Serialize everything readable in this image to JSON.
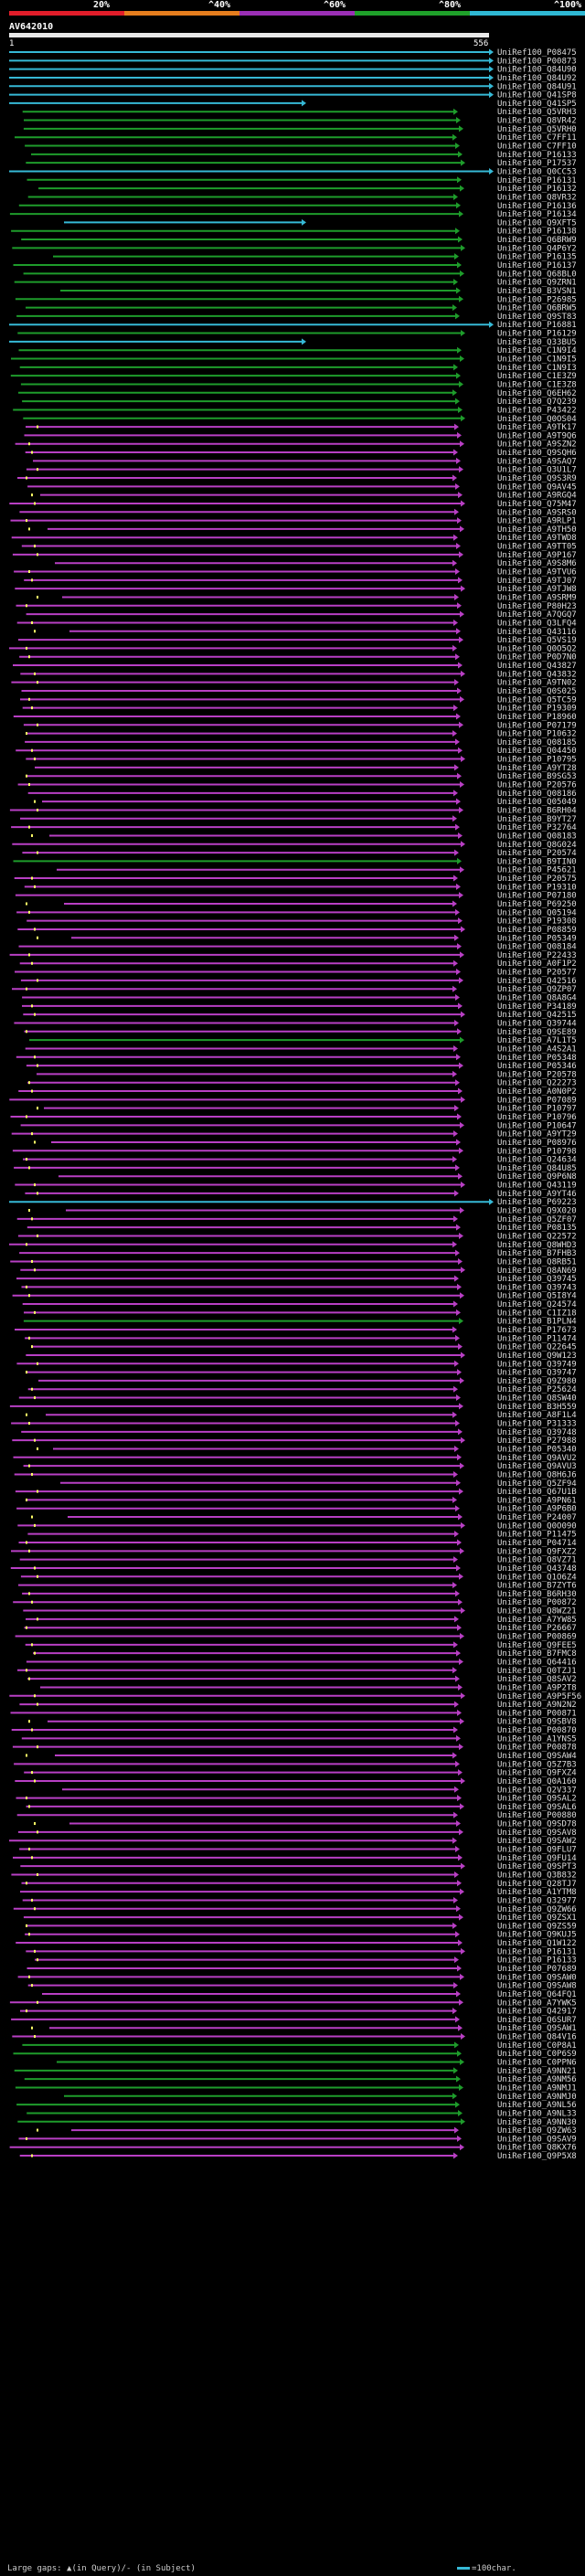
{
  "chart_data": {
    "type": "alignment-graph",
    "query": {
      "name": "AV642010",
      "start": 1,
      "end": 556
    },
    "scale": [
      {
        "label": "20%",
        "color": "#e11d2a"
      },
      {
        "label": "^40%",
        "color": "#e67e1e"
      },
      {
        "label": "^60%",
        "color": "#9b2fb5"
      },
      {
        "label": "^80%",
        "color": "#1fa12a"
      },
      {
        "label": "^100%",
        "color": "#2fb8d4"
      }
    ],
    "class_colors": {
      "c": "#36b9d6",
      "g": "#1e9c2b",
      "m": "#b83fc4"
    },
    "hits_compact": "P08475:c,P00873:c,Q84U90:c,Q84U92:c,Q84U91:c,Q41SP8:c,Q41SP5:c,Q5VRH3:g,Q8VR42:g,Q5VRH0:g,C7FF11:g,C7FF10:g,P16133:g,P17537:g,Q0CC53:c,P16131:g,P16132:g,Q8VR32:g,P16136:g,P16134:g,Q9XFT5:c,P16138:g,Q6BRW9:g,Q4P6Y2:g,P16135:g,P16137:g,Q68BL0:g,Q9ZRN1:g,B3VSN1:g,P26985:g,Q6BRW5:g,Q9ST83:g,P16881:c,P16129:g,Q33BU5:c,C1N9I4:g,C1N9I5:g,C1N9I3:g,C1E3Z9:g,C1E3Z8:g,Q6EH62:g,Q7Q239:g,P43422:g,Q0OS04:g,A9TK17:m,A9T9Q6:m,A9SZN2:m,Q9SQH6:m,A9SAQ7:m,Q3U1L7:m,Q9S3R9:m,Q9AV45:m,A9RGQ4:m,Q75M47:m,A9SRS0:m,A9RLP1:m,A9TH50:m,A9TWD8:m,A9TT05:m,A9P167:m,A9S8M6:m,A9TVU6:m,A9TJ07:m,A9TJW8:m,A9SRM9:m,P80H23:m,A7QGQ7:m,Q3LFQ4:m,Q43116:m,Q5VS19:m,Q0O5Q2:m,P0D7N0:m,Q43827:m,Q43832:m,A9TN02:m,Q0S025:m,Q5TC59:m,P19309:m,P18960:m,P07179:m,P10632:m,Q08185:m,Q04450:m,P10795:m,A9YT28:m,B9SG53:m,P20576:m,Q08186:m,Q05049:m,B6RH04:m,B9YT27:m,P32764:m,Q08183:m,Q8G024:m,P20574:m,B9TIN0:g,P45621:m,P20575:m,P19310:m,P07180:m,P69250:m,Q05194:m,P19308:m,P08859:m,P05349:m,Q08184:m,P22433:m,A0F1P2:m,P20577:m,Q42516:m,Q9ZP07:m,Q8A8G4:m,P34189:m,Q42515:m,Q39744:m,Q9SE89:m,A7L1T5:g,A4S2A1:m,P05348:m,P05346:m,P20578:m,Q22273:m,A0N0P2:m,P07089:m,P10797:m,P10796:m,P10647:m,A9YT29:m,P08976:m,P10798:m,Q24634:m,Q84U85:m,Q9P6N8:m,Q43119:m,A9YT46:m,P69223:c,Q9X020:m,Q5ZF07:m,P08135:m,Q22572:m,Q8WHD3:m,B7FHB3:m,Q8RB51:m,Q8AN69:m,Q39745:m,Q39743:m,Q5I8Y4:m,Q24574:m,C1IZ18:m,B1PLN4:g,P17673:m,P11474:m,Q22645:m,Q9W123:m,Q39749:m,Q39747:m,Q9Z980:m,P25624:m,Q8SW40:m,B3H559:m,A8F1L4:m,P31333:m,Q39748:m,P27988:m,P05340:m,Q9AVU2:m,Q9AVU3:m,Q8H6J6:m,Q5ZF94:m,Q67U1B:m,A9PN61:m,A9P6B0:m,P24007:m,Q0O090:m,P11475:m,P04714:m,Q9FXZ2:m,Q8VZ71:m,Q43748:m,Q1O6Z4:m,B7ZYT6:m,B6RH30:m,P00872:m,Q8WZ21:m,A7YW85:m,P26667:m,P00869:m,Q9FEE5:m,B7FMC8:m,Q64416:m,Q0TZJ1:m,Q8SAV2:m,A9P2T8:m,A9P5F56:m,A9N2N2:m,P00871:m,Q9SBV8:m,P00870:m,A1YNS5:m,P00878:m,Q9SAW4:m,Q5Z7B3:m,Q9FXZ4:m,Q0A160:m,Q2V337:m,Q9SAL2:m,Q9SAL6:m,P00880:m,Q9SD78:m,Q9SAV8:m,Q9SAW2:m,Q9FLU7:m,Q9FU14:m,Q9SPT3:m,Q3B832:m,Q28TJ7:m,A1YTM8:m,Q32977:m,Q9ZW66:m,Q9ZSX1:m,Q9ZS59:m,Q9KUJ5:m,Q1W122:m,P16131:m,P16133:m,P07689:m,Q9SAW0:m,Q9SAW8:m,Q64FQ1:m,A7YWK5:m,Q42917:m,Q6SUR7:m,Q9SAW1:m,Q84V16:m,C0P8A1:g,C0P6S9:g,C0PPN6:g,A9NN21:g,A9NM56:g,A9NMJ1:g,A9NMJ0:g,A9NL56:g,A9NL33:g,A9NN30:g,Q9ZW63:m,Q9SAV9:m,Q8KX76:m,Q9P5X8:m"
  },
  "footer": {
    "large_gaps": "Large gaps: ▲(in Query)/- (in Subject)",
    "scale_note": "=100char."
  }
}
